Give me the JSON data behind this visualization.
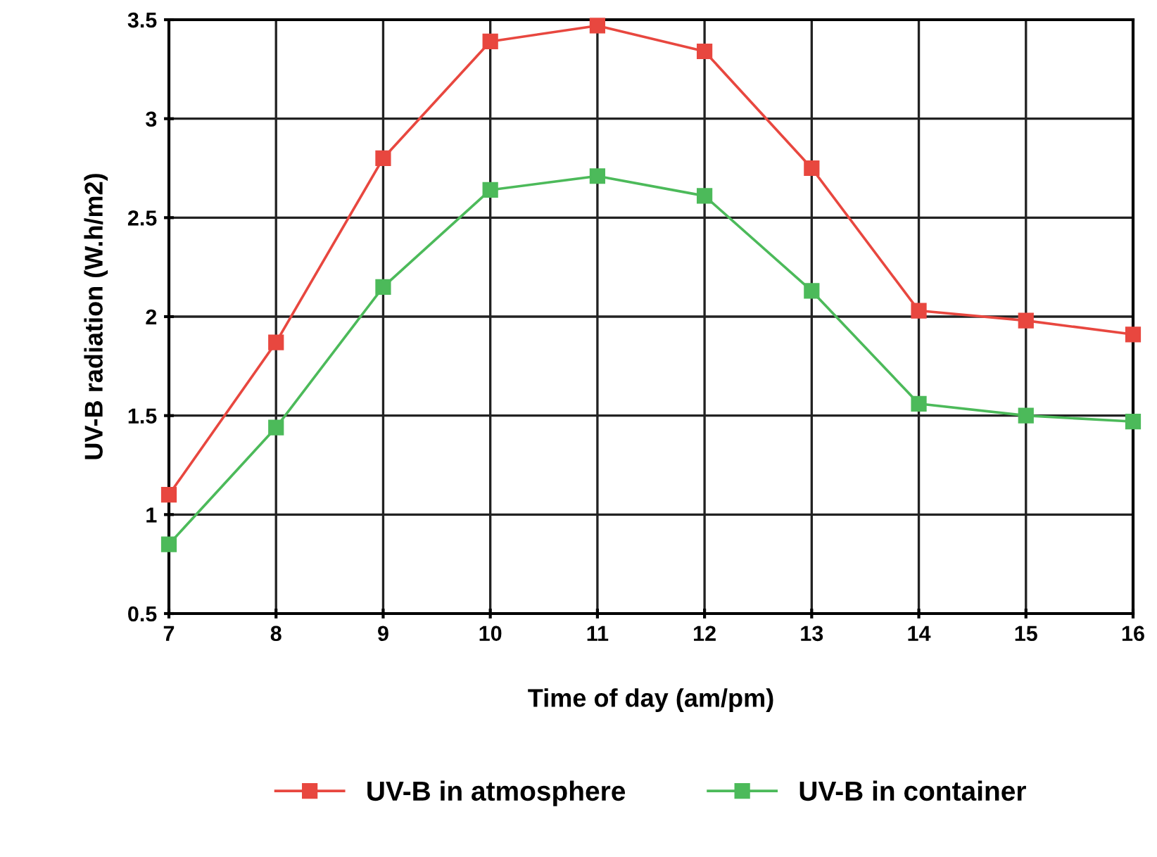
{
  "chart_data": {
    "type": "line",
    "xlabel": "Time of day (am/pm)",
    "ylabel": "UV-B radiation (W.h/m2)",
    "x": [
      7,
      8,
      9,
      10,
      11,
      12,
      13,
      14,
      15,
      16
    ],
    "series": [
      {
        "name": "UV-B in atmosphere",
        "color": "#e8473f",
        "values": [
          1.1,
          1.87,
          2.8,
          3.39,
          3.47,
          3.34,
          2.75,
          2.03,
          1.98,
          1.91
        ]
      },
      {
        "name": "UV-B in container",
        "color": "#4cba5a",
        "values": [
          0.85,
          1.44,
          2.15,
          2.64,
          2.71,
          2.61,
          2.13,
          1.56,
          1.5,
          1.47
        ]
      }
    ],
    "xlim": [
      7,
      16
    ],
    "xticks": [
      7,
      8,
      9,
      10,
      11,
      12,
      13,
      14,
      15,
      16
    ],
    "ylim": [
      0.5,
      3.5
    ],
    "yticks": [
      0.5,
      1,
      1.5,
      2,
      2.5,
      3,
      3.5
    ],
    "grid": true,
    "legend": "bottom",
    "marker": "square",
    "line_style": "solid"
  }
}
